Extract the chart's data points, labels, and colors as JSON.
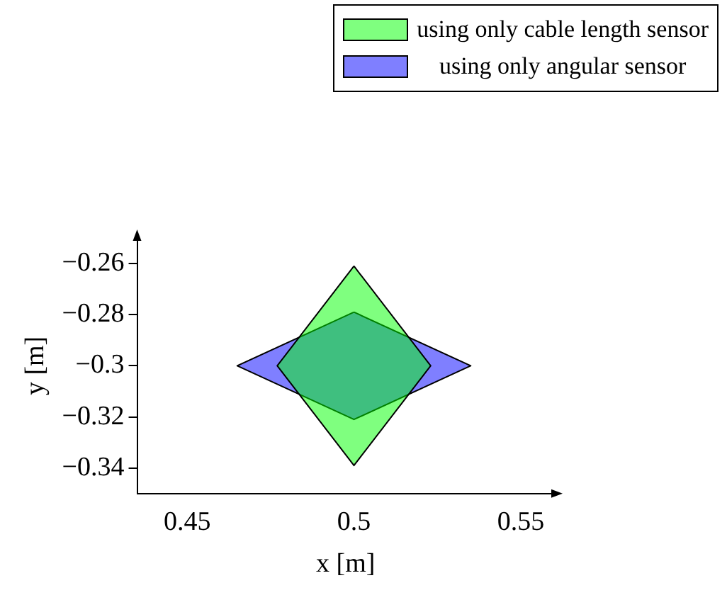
{
  "chart_data": {
    "type": "area",
    "xlabel": "x [m]",
    "ylabel": "y [m]",
    "legend": "top right",
    "grid": false,
    "xlim": [
      0.435,
      0.56
    ],
    "ylim": [
      -0.35,
      -0.25
    ],
    "xticks": [
      0.45,
      0.5,
      0.55
    ],
    "yticks": [
      {
        "value": -0.34,
        "label": "−0.34"
      },
      {
        "value": -0.32,
        "label": "−0.32"
      },
      {
        "value": -0.3,
        "label": "−0.3"
      },
      {
        "value": -0.28,
        "label": "−0.28"
      },
      {
        "value": -0.26,
        "label": "−0.26"
      }
    ],
    "series": [
      {
        "name": "using only cable length sensor",
        "color": "#00ff00",
        "x": [
          0.5,
          0.523,
          0.5,
          0.477,
          0.5
        ],
        "values": [
          -0.261,
          -0.3,
          -0.339,
          -0.3,
          -0.261
        ]
      },
      {
        "name": "using only angular sensor",
        "color": "#0000ff",
        "x": [
          0.5,
          0.535,
          0.5,
          0.465,
          0.5
        ],
        "values": [
          -0.279,
          -0.3,
          -0.321,
          -0.3,
          -0.279
        ]
      }
    ]
  }
}
